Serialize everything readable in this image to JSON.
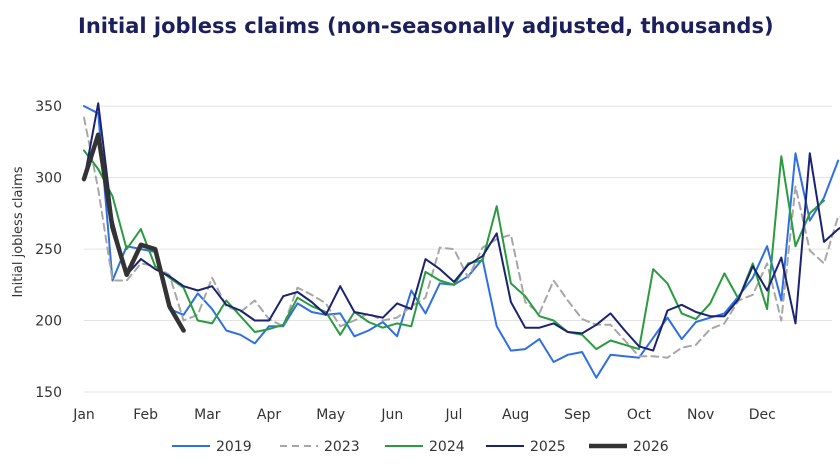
{
  "chart_data": {
    "type": "line",
    "title": "Initial jobless claims (non-seasonally adjusted, thousands)",
    "xlabel": "",
    "ylabel": "Initial jobless claims",
    "x_ticks": [
      "Jan",
      "Feb",
      "Mar",
      "Apr",
      "May",
      "Jun",
      "Jul",
      "Aug",
      "Sep",
      "Oct",
      "Nov",
      "Dec"
    ],
    "y_ticks": [
      150,
      200,
      250,
      300,
      350
    ],
    "ylim": [
      150,
      355
    ],
    "grid": "horizontal",
    "legend": "bottom",
    "series": [
      {
        "name": "2019",
        "color": "#2f6fe4",
        "dash": false,
        "values": [
          350,
          345,
          228,
          252,
          250,
          248,
          208,
          204,
          219,
          208,
          193,
          190,
          184,
          196,
          196,
          212,
          206,
          204,
          205,
          189,
          193,
          199,
          189,
          221,
          205,
          226,
          225,
          231,
          243,
          196,
          179,
          180,
          187,
          171,
          176,
          178,
          160,
          176,
          175,
          174,
          188,
          202,
          187,
          199,
          202,
          205,
          217,
          230,
          252,
          214,
          317,
          270,
          286,
          312
        ]
      },
      {
        "name": "2023",
        "color": "#a7a7a7",
        "dash": true,
        "values": [
          342,
          292,
          228,
          228,
          240,
          238,
          232,
          200,
          204,
          230,
          210,
          206,
          214,
          201,
          196,
          223,
          218,
          212,
          196,
          200,
          205,
          200,
          202,
          210,
          216,
          251,
          250,
          230,
          251,
          257,
          260,
          213,
          205,
          228,
          214,
          201,
          197,
          197,
          186,
          175,
          175,
          174,
          181,
          183,
          194,
          198,
          214,
          218,
          240,
          200,
          294,
          249,
          240,
          273,
          270
        ]
      },
      {
        "name": "2024",
        "color": "#2b9b3f",
        "dash": false,
        "values": [
          319,
          306,
          287,
          250,
          264,
          238,
          230,
          223,
          200,
          198,
          214,
          203,
          192,
          194,
          197,
          216,
          210,
          206,
          190,
          206,
          199,
          195,
          198,
          196,
          234,
          228,
          225,
          240,
          242,
          280,
          226,
          217,
          203,
          200,
          192,
          190,
          180,
          186,
          183,
          180,
          236,
          226,
          205,
          201,
          212,
          233,
          215,
          240,
          208,
          315,
          252,
          275,
          284
        ]
      },
      {
        "name": "2025",
        "color": "#1b2370",
        "dash": false,
        "values": [
          298,
          352,
          270,
          232,
          243,
          236,
          231,
          224,
          221,
          224,
          211,
          207,
          200,
          200,
          217,
          220,
          213,
          204,
          224,
          206,
          204,
          202,
          212,
          208,
          243,
          236,
          227,
          239,
          245,
          261,
          213,
          195,
          195,
          198,
          192,
          191,
          197,
          205,
          193,
          182,
          179,
          207,
          211,
          206,
          203,
          203,
          215,
          238,
          221,
          244,
          198,
          317,
          255,
          264,
          270
        ]
      },
      {
        "name": "2026",
        "color": "#333333",
        "dash": false,
        "values": [
          299,
          330,
          265,
          232,
          253,
          250,
          210,
          193
        ]
      }
    ]
  }
}
